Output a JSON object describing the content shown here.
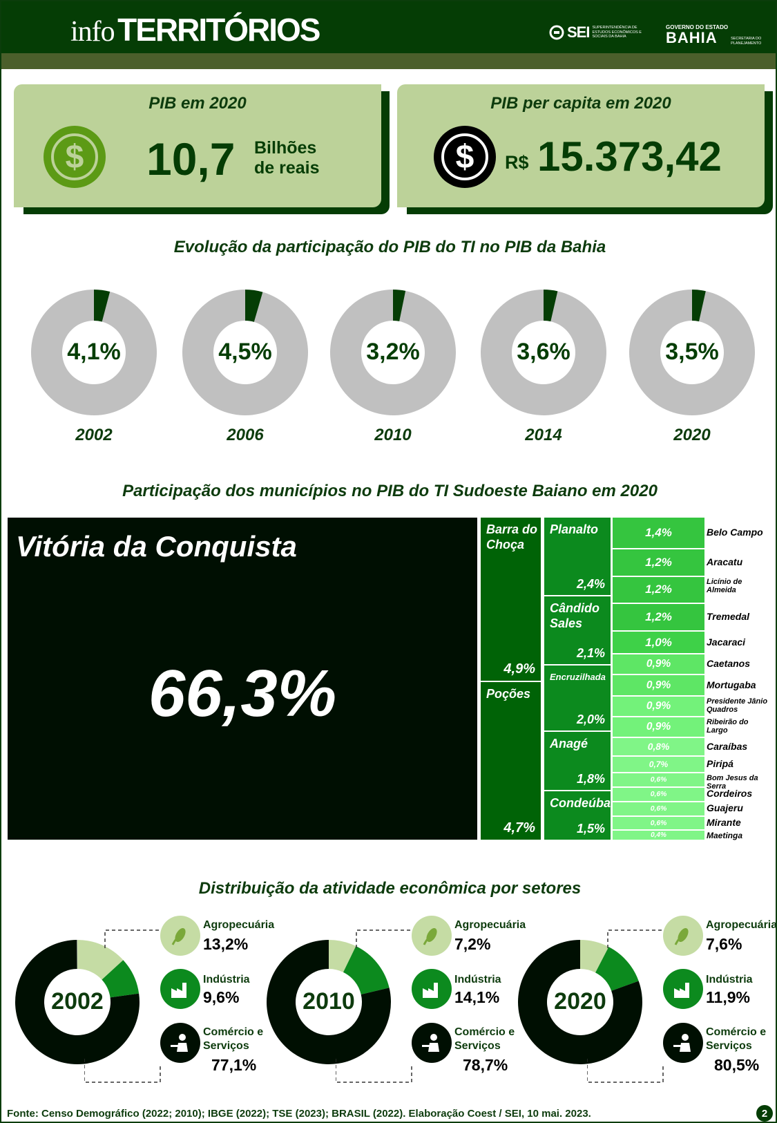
{
  "header": {
    "brand_prefix": "info",
    "brand_name": "TERRITÓRIOS",
    "sei_name": "SEI",
    "sei_desc": "Superintendência de Estudos Econômicos e Sociais da Bahia",
    "gov_top": "GOVERNO DO ESTADO",
    "gov_name": "BAHIA",
    "gov_desc": "Secretaria do Planejamento"
  },
  "kpis": {
    "pib": {
      "title": "PIB em 2020",
      "value": "10,7",
      "unit_line1": "Bilhões",
      "unit_line2": "de reais",
      "icon": "dollar-coin-icon",
      "coin_symbol": "$"
    },
    "pib_per_capita": {
      "title": "PIB per capita em 2020",
      "currency": "R$",
      "value": "15.373,42",
      "icon": "dollar-coin-icon",
      "coin_symbol": "$"
    }
  },
  "sections": {
    "evolution_title": "Evolução da participação do PIB do TI no PIB da Bahia",
    "municipal_title": "Participação dos municípios no PIB do TI Sudoeste Baiano em 2020",
    "sectors_title": "Distribuição da atividade econômica por setores"
  },
  "footer": {
    "source": "Fonte: Censo Demográfico (2022; 2010); IBGE (2022);  TSE (2023); BRASIL (2022). Elaboração Coest / SEI, 10 mai. 2023.",
    "page": "2"
  },
  "colors": {
    "dark_green": "#053d05",
    "light_green": "#bcd299",
    "donut_gray": "#c0c0c0",
    "agro": "#c5dca4",
    "industry": "#0c8a1e",
    "commerce": "#000f02"
  },
  "chart_data": [
    {
      "type": "pie",
      "title": "Evolução da participação do PIB do TI no PIB da Bahia",
      "categories": [
        "2002",
        "2006",
        "2010",
        "2014",
        "2020"
      ],
      "values": [
        4.1,
        4.5,
        3.2,
        3.6,
        3.5
      ],
      "labels": [
        "4,1%",
        "4,5%",
        "3,2%",
        "3,6%",
        "3,5%"
      ]
    },
    {
      "type": "treemap",
      "title": "Participação dos municípios no PIB do TI Sudoeste Baiano em 2020",
      "items": [
        {
          "name": "Vitória da Conquista",
          "value": 66.3,
          "label": "66,3%"
        },
        {
          "name": "Barra do Choça",
          "value": 4.9,
          "label": "4,9%"
        },
        {
          "name": "Poções",
          "value": 4.7,
          "label": "4,7%"
        },
        {
          "name": "Planalto",
          "value": 2.4,
          "label": "2,4%"
        },
        {
          "name": "Cândido Sales",
          "value": 2.1,
          "label": "2,1%"
        },
        {
          "name": "Encruzilhada",
          "value": 2.0,
          "label": "2,0%"
        },
        {
          "name": "Anagé",
          "value": 1.8,
          "label": "1,8%"
        },
        {
          "name": "Condeúba",
          "value": 1.5,
          "label": "1,5%"
        },
        {
          "name": "Belo Campo",
          "value": 1.4,
          "label": "1,4%"
        },
        {
          "name": "Aracatu",
          "value": 1.2,
          "label": "1,2%"
        },
        {
          "name": "Licínio de Almeida",
          "value": 1.2,
          "label": "1,2%"
        },
        {
          "name": "Tremedal",
          "value": 1.2,
          "label": "1,2%"
        },
        {
          "name": "Jacaraci",
          "value": 1.0,
          "label": "1,0%"
        },
        {
          "name": "Caetanos",
          "value": 0.9,
          "label": "0,9%"
        },
        {
          "name": "Mortugaba",
          "value": 0.9,
          "label": "0,9%"
        },
        {
          "name": "Presidente Jânio Quadros",
          "value": 0.9,
          "label": "0,9%"
        },
        {
          "name": "Ribeirão do Largo",
          "value": 0.9,
          "label": "0,9%"
        },
        {
          "name": "Caraíbas",
          "value": 0.8,
          "label": "0,8%"
        },
        {
          "name": "Piripá",
          "value": 0.7,
          "label": "0,7%"
        },
        {
          "name": "Bom Jesus da Serra",
          "value": 0.6,
          "label": "0,6%"
        },
        {
          "name": "Cordeiros",
          "value": 0.6,
          "label": "0,6%"
        },
        {
          "name": "Guajeru",
          "value": 0.6,
          "label": "0,6%"
        },
        {
          "name": "Mirante",
          "value": 0.6,
          "label": "0,6%"
        },
        {
          "name": "Maetinga",
          "value": 0.4,
          "label": "0,4%"
        }
      ]
    },
    {
      "type": "pie",
      "title": "Distribuição da atividade econômica por setores",
      "categories": [
        "Agropecuária",
        "Indústria",
        "Comércio e Serviços"
      ],
      "series": [
        {
          "name": "2002",
          "values": [
            13.2,
            9.6,
            77.1
          ],
          "labels": [
            "13,2%",
            "9,6%",
            "77,1%"
          ]
        },
        {
          "name": "2010",
          "values": [
            7.2,
            14.1,
            78.7
          ],
          "labels": [
            "7,2%",
            "14,1%",
            "78,7%"
          ]
        },
        {
          "name": "2020",
          "values": [
            7.6,
            11.9,
            80.5
          ],
          "labels": [
            "7,6%",
            "11,9%",
            "80,5%"
          ]
        }
      ]
    }
  ],
  "sector_labels": {
    "agro_name": "Agropecuária",
    "industry_name": "Indústria",
    "commerce_line1": "Comércio e",
    "commerce_line2": "Serviços"
  }
}
